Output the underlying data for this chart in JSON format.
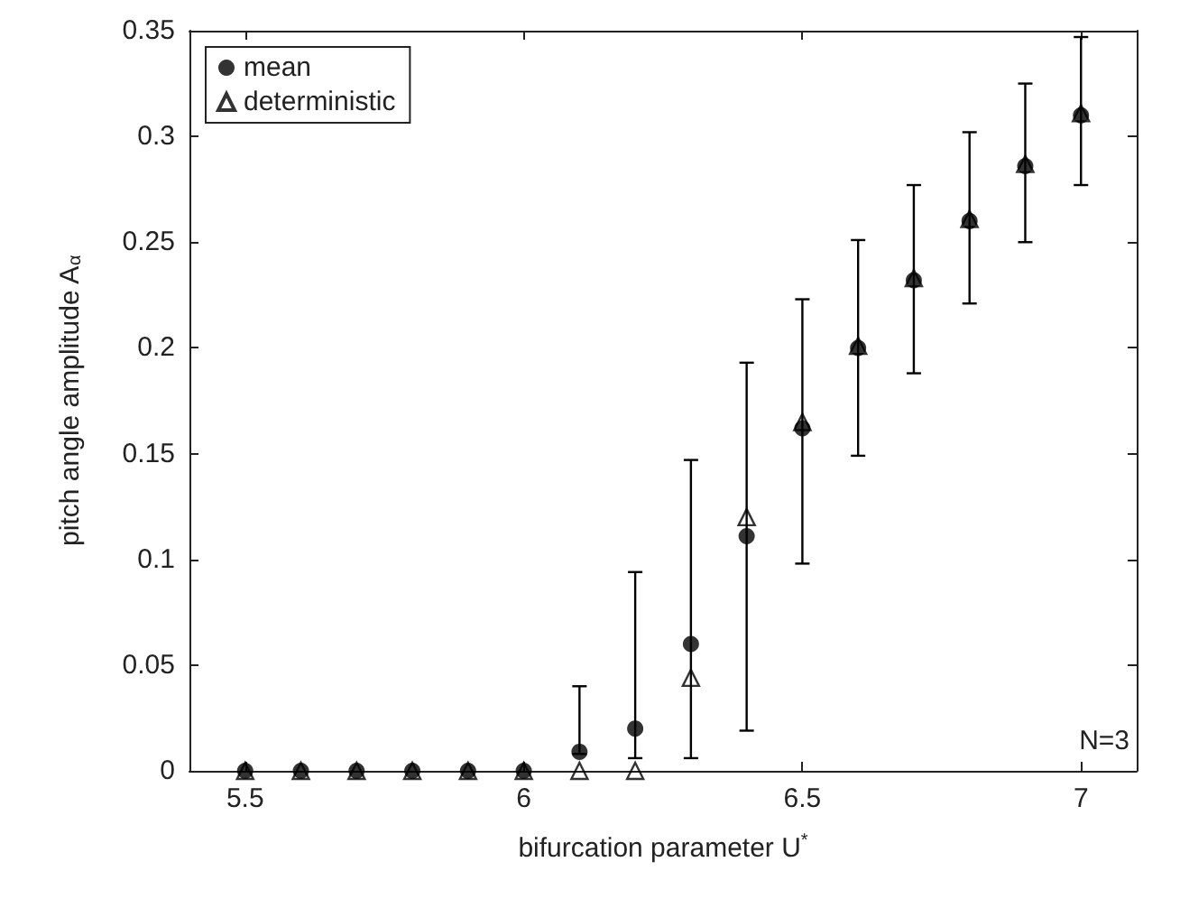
{
  "chart_data": {
    "type": "scatter",
    "xlabel": "bifurcation parameter U$^{*}$",
    "ylabel": "pitch angle amplitude A$_{α}$",
    "x": [
      5.5,
      5.6,
      5.7,
      5.8,
      5.9,
      6.0,
      6.1,
      6.2,
      6.3,
      6.4,
      6.5,
      6.6,
      6.7,
      6.8,
      6.9,
      7.0
    ],
    "series": [
      {
        "name": "mean",
        "color": "#000000",
        "marker": "circle",
        "values": [
          0,
          0,
          0,
          0,
          0,
          0,
          0.009,
          0.02,
          0.06,
          0.111,
          0.162,
          0.2,
          0.232,
          0.26,
          0.286,
          0.31
        ],
        "errors": [
          null,
          null,
          null,
          null,
          null,
          null,
          [
            0.008,
            0.04
          ],
          [
            0.006,
            0.094
          ],
          [
            0.006,
            0.147
          ],
          [
            0.019,
            0.193
          ],
          [
            0.098,
            0.223
          ],
          [
            0.149,
            0.251
          ],
          [
            0.188,
            0.277
          ],
          [
            0.221,
            0.302
          ],
          [
            0.25,
            0.325
          ],
          [
            0.277,
            0.347
          ]
        ]
      },
      {
        "name": "deterministic",
        "color": "#000000",
        "marker": "triangle",
        "values": [
          0,
          0,
          0,
          0,
          0,
          0,
          0,
          0,
          0.044,
          0.12,
          0.165,
          0.201,
          0.233,
          0.261,
          0.287,
          0.311
        ]
      }
    ],
    "xlim": [
      5.4,
      7.1
    ],
    "xticks": [
      5.5,
      6,
      6.5,
      7
    ],
    "ylim": [
      0,
      0.35
    ],
    "yticks": [
      0,
      0.05,
      0.1,
      0.15,
      0.2,
      0.25,
      0.3,
      0.35
    ],
    "annotations": [
      "N=3"
    ],
    "legend": "top left",
    "grid": false
  }
}
